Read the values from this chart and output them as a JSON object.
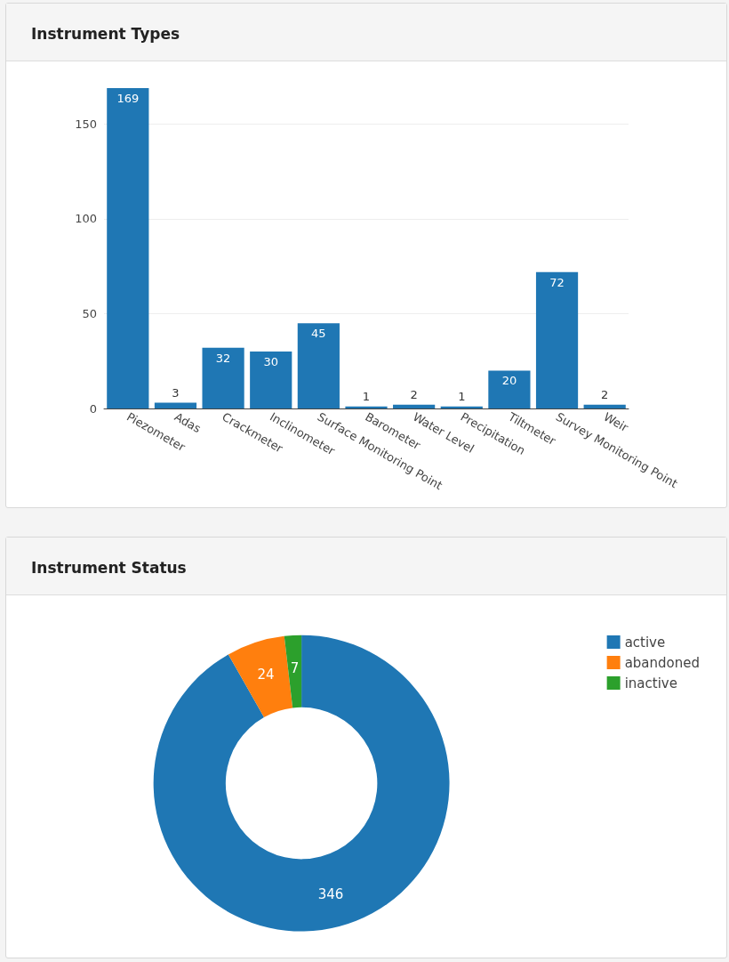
{
  "chart_data": [
    {
      "type": "bar",
      "title": "Instrument Types",
      "categories": [
        "Piezometer",
        "Adas",
        "Crackmeter",
        "Inclinometer",
        "Surface Monitoring Point",
        "Barometer",
        "Water Level",
        "Precipitation",
        "Tiltmeter",
        "Survey Monitoring Point",
        "Weir"
      ],
      "values": [
        169,
        3,
        32,
        30,
        45,
        1,
        2,
        1,
        20,
        72,
        2
      ],
      "color": "#1f77b4",
      "ylim": [
        0,
        169
      ],
      "yticks": [
        0,
        50,
        100,
        150
      ],
      "grid": "y",
      "data_labels": true
    },
    {
      "type": "donut",
      "title": "Instrument Status",
      "categories": [
        "active",
        "abandoned",
        "inactive"
      ],
      "values": [
        346,
        24,
        7
      ],
      "colors": [
        "#1f77b4",
        "#ff7f0e",
        "#2ca02c"
      ],
      "data_labels": true,
      "legend": "top right"
    }
  ]
}
